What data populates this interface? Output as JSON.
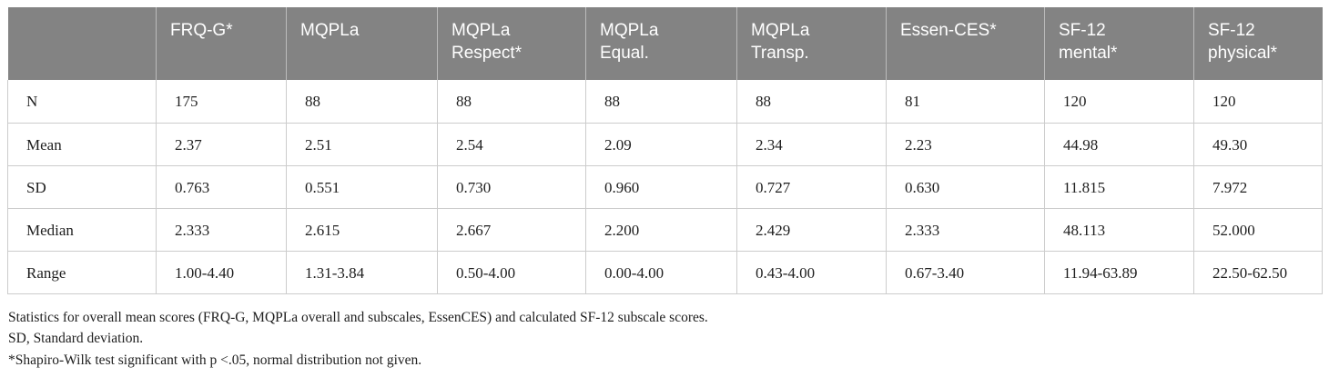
{
  "table": {
    "header": [
      "",
      "FRQ-G*",
      "MQPLa",
      "MQPLa\nRespect*",
      "MQPLa\nEqual.",
      "MQPLa\nTransp.",
      "Essen-CES*",
      "SF-12\nmental*",
      "SF-12\nphysical*"
    ],
    "rows": [
      {
        "label": "N",
        "values": [
          "175",
          "88",
          "88",
          "88",
          "88",
          "81",
          "120",
          "120"
        ]
      },
      {
        "label": "Mean",
        "values": [
          "2.37",
          "2.51",
          "2.54",
          "2.09",
          "2.34",
          "2.23",
          "44.98",
          "49.30"
        ]
      },
      {
        "label": "SD",
        "values": [
          "0.763",
          "0.551",
          "0.730",
          "0.960",
          "0.727",
          "0.630",
          "11.815",
          "7.972"
        ]
      },
      {
        "label": "Median",
        "values": [
          "2.333",
          "2.615",
          "2.667",
          "2.200",
          "2.429",
          "2.333",
          "48.113",
          "52.000"
        ]
      },
      {
        "label": "Range",
        "values": [
          "1.00-4.40",
          "1.31-3.84",
          "0.50-4.00",
          "0.00-4.00",
          "0.43-4.00",
          "0.67-3.40",
          "11.94-63.89",
          "22.50-62.50"
        ]
      }
    ]
  },
  "notes": {
    "caption": "Statistics for overall mean scores (FRQ-G, MQPLa overall and subscales, EssenCES) and calculated SF-12 subscale scores.",
    "sd_note": "SD, Standard deviation.",
    "asterisk_note": "*Shapiro-Wilk test significant with p <.05, normal distribution not given."
  },
  "colors": {
    "header_bg": "#838383",
    "header_text": "#ffffff",
    "border": "#cccccc",
    "body_text": "#1e1e1e"
  }
}
